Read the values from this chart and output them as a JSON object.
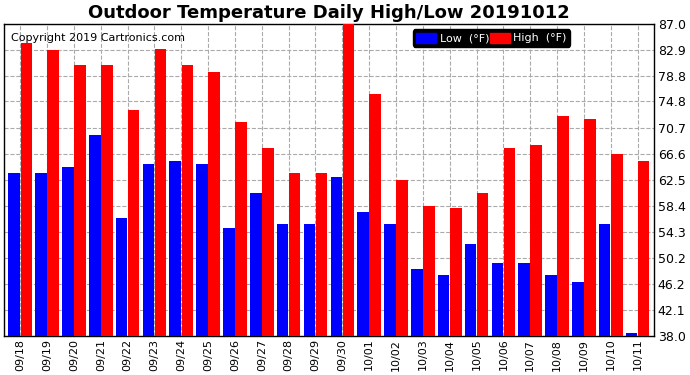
{
  "title": "Outdoor Temperature Daily High/Low 20191012",
  "copyright": "Copyright 2019 Cartronics.com",
  "categories": [
    "09/18",
    "09/19",
    "09/20",
    "09/21",
    "09/22",
    "09/23",
    "09/24",
    "09/25",
    "09/26",
    "09/27",
    "09/28",
    "09/29",
    "09/30",
    "10/01",
    "10/02",
    "10/03",
    "10/04",
    "10/05",
    "10/06",
    "10/07",
    "10/08",
    "10/09",
    "10/10",
    "10/11"
  ],
  "high": [
    84.0,
    82.9,
    80.5,
    80.5,
    73.5,
    83.0,
    80.5,
    79.5,
    71.5,
    67.5,
    63.5,
    63.5,
    88.5,
    76.0,
    62.5,
    58.4,
    58.0,
    60.5,
    67.5,
    68.0,
    72.5,
    72.0,
    66.5,
    65.5
  ],
  "low": [
    63.5,
    63.5,
    64.5,
    69.5,
    56.5,
    65.0,
    65.5,
    65.0,
    55.0,
    60.5,
    55.5,
    55.5,
    63.0,
    57.5,
    55.5,
    48.5,
    47.5,
    52.5,
    49.5,
    49.5,
    47.5,
    46.5,
    55.5,
    38.5
  ],
  "high_color": "#ff0000",
  "low_color": "#0000ff",
  "bg_color": "#ffffff",
  "plot_bg_color": "#ffffff",
  "grid_color": "#aaaaaa",
  "ylim_min": 38.0,
  "ylim_max": 87.0,
  "yticks": [
    38.0,
    42.1,
    46.2,
    50.2,
    54.3,
    58.4,
    62.5,
    66.6,
    70.7,
    74.8,
    78.8,
    82.9,
    87.0
  ],
  "title_fontsize": 13,
  "copyright_fontsize": 8,
  "legend_low_label": "Low  (°F)",
  "legend_high_label": "High  (°F)"
}
